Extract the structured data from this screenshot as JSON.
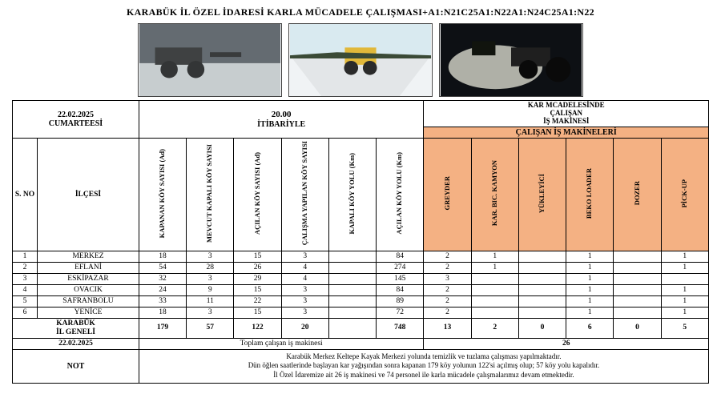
{
  "title": "KARABÜK İL ÖZEL İDARESİ KARLA MÜCADELE ÇALIŞMASI+A1:N21C25A1:N22A1:N24C25A1:N22",
  "colors": {
    "machines_bg": "#f4b183",
    "border": "#000000",
    "page_bg": "#ffffff"
  },
  "header": {
    "date_day": "22.02.2025",
    "date_wk": "CUMARTEESİ",
    "time": "20.00",
    "time_sub": "İTİBARİYLE",
    "mach_group1": "KAR MCADELESİNDE",
    "mach_group2": "ÇALIŞAN",
    "mach_group3": "İŞ MAKİNESİ",
    "machines_band": "ÇALIŞAN İŞ MAKİNELERİ"
  },
  "cols": {
    "sno": "S. NO",
    "ilce": "İLÇESİ",
    "c1": "KAPANAN KÖY SAYISI (Ad)",
    "c2": "MEVCUT KAPALI KÖY SAYISI",
    "c3": "AÇILAN KÖY SAYISI (Ad)",
    "c4": "ÇALIŞMA YAPILAN KÖY SAYISI",
    "c5": "KAPALI KÖY YOLU (Km)",
    "c6": "AÇILAN KÖY YOLU (Km)",
    "m1": "GREYDER",
    "m2": "KAR. BIC. KAMYON",
    "m3": "YÜKLEYİCİ",
    "m4": "BEKO LOADER",
    "m5": "DOZER",
    "m6": "PİCK-UP"
  },
  "rows": [
    {
      "no": "1",
      "ilce": "MERKEZ",
      "v": [
        "18",
        "3",
        "15",
        "3",
        "",
        "84"
      ],
      "m": [
        "2",
        "1",
        "",
        "1",
        "",
        "1"
      ]
    },
    {
      "no": "2",
      "ilce": "EFLANİ",
      "v": [
        "54",
        "28",
        "26",
        "4",
        "",
        "274"
      ],
      "m": [
        "2",
        "1",
        "",
        "1",
        "",
        "1"
      ]
    },
    {
      "no": "3",
      "ilce": "ESKİPAZAR",
      "v": [
        "32",
        "3",
        "29",
        "4",
        "",
        "145"
      ],
      "m": [
        "3",
        "",
        "",
        "1",
        "",
        ""
      ]
    },
    {
      "no": "4",
      "ilce": "OVACIK",
      "v": [
        "24",
        "9",
        "15",
        "3",
        "",
        "84"
      ],
      "m": [
        "2",
        "",
        "",
        "1",
        "",
        "1"
      ]
    },
    {
      "no": "5",
      "ilce": "SAFRANBOLU",
      "v": [
        "33",
        "11",
        "22",
        "3",
        "",
        "89"
      ],
      "m": [
        "2",
        "",
        "",
        "1",
        "",
        "1"
      ]
    },
    {
      "no": "6",
      "ilce": "YENİCE",
      "v": [
        "18",
        "3",
        "15",
        "3",
        "",
        "72"
      ],
      "m": [
        "2",
        "",
        "",
        "1",
        "",
        "1"
      ]
    }
  ],
  "total_row": {
    "label1": "KARABÜK",
    "label2": "İL GENELİ",
    "v": [
      "179",
      "57",
      "122",
      "20",
      "",
      "748"
    ],
    "m": [
      "13",
      "2",
      "0",
      "6",
      "0",
      "5"
    ]
  },
  "grand": {
    "date": "22.02.2025",
    "label": "Toplam çalışan iş makinesi",
    "value": "26"
  },
  "note": {
    "label": "NOT",
    "l1": "Karabük Merkez Keltepe Kayak Merkezi yolunda temizlik ve tuzlama çalışması yapılmaktadır.",
    "l2": "Dün öğlen saatlerinde başlayan kar yağışından sonra kapanan 179 köy yolunun 122'si açılmış olup; 57 köy yolu kapalıdır.",
    "l3": "İl Özel İdaremize ait 26 iş makinesi ve 74 personel ile karla mücadele çalışmalarımız devam etmektedir."
  }
}
